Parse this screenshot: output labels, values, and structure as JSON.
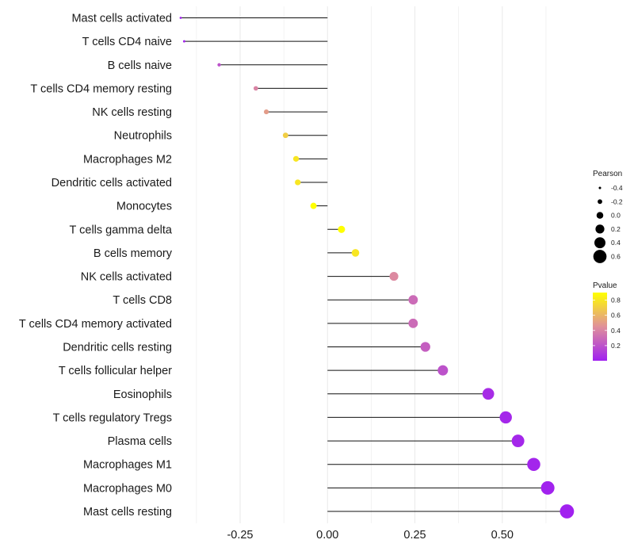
{
  "chart_data": {
    "type": "lollipop",
    "title": "",
    "xlabel": "",
    "ylabel": "",
    "xlim": [
      -0.42,
      0.7
    ],
    "x_ticks": [
      -0.25,
      0.0,
      0.25,
      0.5
    ],
    "x_tick_labels": [
      "-0.25",
      "0.00",
      "0.25",
      "0.50"
    ],
    "grid": true,
    "categories": [
      "Mast cells activated",
      "T cells CD4 naive",
      "B cells naive",
      "T cells CD4 memory resting",
      "NK cells resting",
      "Neutrophils",
      "Macrophages M2",
      "Dendritic cells activated",
      "Monocytes",
      "T cells gamma delta",
      "B cells memory",
      "NK cells activated",
      "T cells CD8",
      "T cells CD4 memory activated",
      "Dendritic cells resting",
      "T cells follicular helper",
      "Eosinophils",
      "T cells regulatory  Tregs ",
      "Plasma cells",
      "Macrophages M1",
      "Macrophages M0",
      "Mast cells resting"
    ],
    "pearson": [
      -0.42,
      -0.41,
      -0.31,
      -0.205,
      -0.175,
      -0.12,
      -0.09,
      -0.085,
      -0.04,
      0.04,
      0.08,
      0.19,
      0.245,
      0.245,
      0.28,
      0.33,
      0.46,
      0.51,
      0.545,
      0.59,
      0.63,
      0.685
    ],
    "pvalue": [
      0.01,
      0.02,
      0.2,
      0.4,
      0.5,
      0.7,
      0.8,
      0.8,
      0.95,
      0.9,
      0.8,
      0.42,
      0.3,
      0.3,
      0.25,
      0.2,
      0.05,
      0.03,
      0.03,
      0.02,
      0.01,
      0.005
    ],
    "size_legend": {
      "title": "Pearson",
      "labels": [
        "-0.4",
        "-0.2",
        "0.0",
        "0.2",
        "0.4",
        "0.6"
      ],
      "values": [
        -0.4,
        -0.2,
        0.0,
        0.2,
        0.4,
        0.6
      ]
    },
    "color_legend": {
      "title": "Pvalue",
      "labels": [
        "0.8",
        "0.6",
        "0.4",
        "0.2"
      ],
      "values": [
        0.8,
        0.6,
        0.4,
        0.2
      ],
      "range": [
        0.0,
        0.9
      ],
      "low_color": "#a020f0",
      "mid_color": "#e0909a",
      "high_color": "#ffff00"
    },
    "colors": {
      "stem": "#111111",
      "grid": "#ebebeb"
    }
  }
}
